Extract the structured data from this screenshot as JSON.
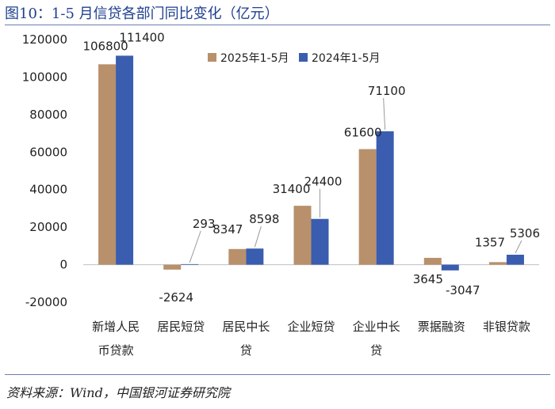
{
  "title": "图10：1-5 月信贷各部门同比变化（亿元）",
  "source": "资料来源：Wind，中国银河证券研究院",
  "colors": {
    "series_2025": "#b8906b",
    "series_2024": "#3a5daf",
    "title": "#1f3f8f",
    "rule": "#6a7fb0"
  },
  "chart_data": {
    "type": "bar",
    "categories": [
      "新增人民币贷款",
      "居民短贷",
      "居民中长贷",
      "企业短贷",
      "企业中长贷",
      "票据融资",
      "非银贷款"
    ],
    "category_label_lines": [
      [
        "新增人民",
        "币贷款"
      ],
      [
        "居民短贷"
      ],
      [
        "居民中长",
        "贷"
      ],
      [
        "企业短贷"
      ],
      [
        "企业中长",
        "贷"
      ],
      [
        "票据融资"
      ],
      [
        "非银贷款"
      ]
    ],
    "series": [
      {
        "name": "2025年1-5月",
        "values": [
          106800,
          -2624,
          8347,
          31400,
          61600,
          3645,
          1357
        ]
      },
      {
        "name": "2024年1-5月",
        "values": [
          111400,
          293,
          8598,
          24400,
          71100,
          -3047,
          5306
        ]
      }
    ],
    "data_labels": [
      [
        "106800",
        "-2624",
        "8347",
        "31400",
        "61600",
        "3645",
        "1357"
      ],
      [
        "111400",
        "293",
        "8598",
        "24400",
        "71100",
        "-3047",
        "5306"
      ]
    ],
    "yticks": [
      -20000,
      0,
      20000,
      40000,
      60000,
      80000,
      100000,
      120000
    ],
    "ytick_labels": [
      "-20000",
      "0",
      "20000",
      "40000",
      "60000",
      "80000",
      "100000",
      "120000"
    ],
    "ylim": [
      -20000,
      120000
    ],
    "legend_position": "top-right",
    "grid": false
  }
}
